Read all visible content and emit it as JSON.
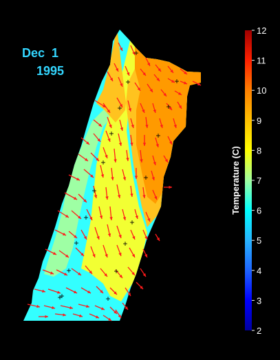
{
  "header": {
    "date_line1": "Dec  1",
    "date_line2": "1995"
  },
  "chart_data": {
    "type": "heatmap",
    "title": "",
    "colorbar": {
      "label": "Temperature (C)",
      "min": 2,
      "max": 12,
      "ticks": [
        2,
        3,
        4,
        5,
        6,
        7,
        8,
        9,
        10,
        11,
        12
      ],
      "stops": [
        "#0000a0",
        "#0000ff",
        "#1e64ff",
        "#28b4ff",
        "#00ffff",
        "#a0ffa0",
        "#ffff00",
        "#ffc000",
        "#ff8000",
        "#ff2000",
        "#a00000"
      ]
    },
    "temperature_bands": [
      {
        "label": "5-6",
        "color": "#33ffff"
      },
      {
        "label": "6-7",
        "color": "#9effa4"
      },
      {
        "label": "7-8",
        "color": "#f2ff33"
      },
      {
        "label": "8-9",
        "color": "#ffc31f"
      },
      {
        "label": "9-10",
        "color": "#ff9a00"
      }
    ],
    "vector_color": "#ff1a1a",
    "station_marker": "+"
  }
}
